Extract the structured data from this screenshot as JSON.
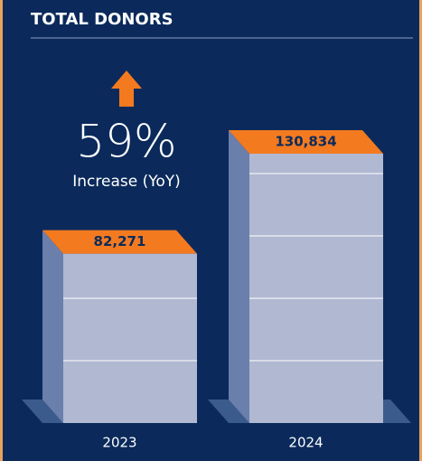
{
  "chart_data": {
    "type": "bar",
    "title": "TOTAL DONORS",
    "categories": [
      "2023",
      "2024"
    ],
    "values": [
      82271,
      130834
    ],
    "value_labels": [
      "82,271",
      "130,834"
    ],
    "color": "#b0b8d2",
    "cap_color": "#f47a20",
    "annotations": [
      "59%",
      "Increase (YoY)"
    ]
  }
}
